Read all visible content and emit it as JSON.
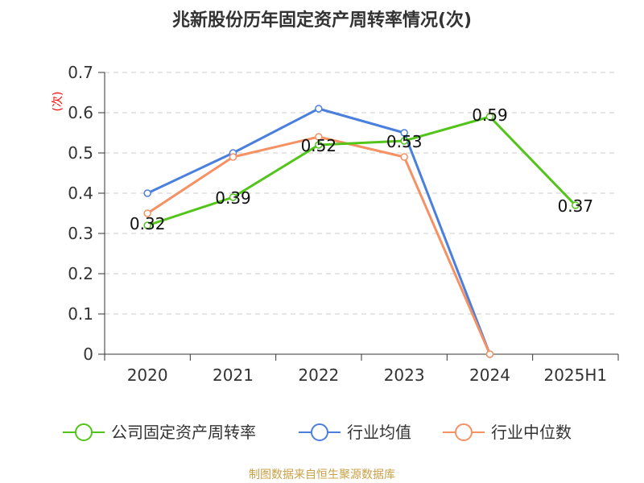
{
  "title": "兆新股份历年固定资产周转率情况(次)",
  "source": "制图数据来自恒生聚源数据库",
  "chart_data": {
    "type": "line",
    "categories": [
      "2020",
      "2021",
      "2022",
      "2023",
      "2024",
      "2025H1"
    ],
    "ylabel": "(次)",
    "ylim": [
      0,
      0.7
    ],
    "yticks": [
      "0",
      "0.1",
      "0.2",
      "0.3",
      "0.4",
      "0.5",
      "0.6",
      "0.7"
    ],
    "grid": true,
    "legend_position": "bottom",
    "series": [
      {
        "name": "公司固定资产周转率",
        "color": "#52c41a",
        "values": [
          0.32,
          0.39,
          0.52,
          0.53,
          0.59,
          0.37
        ],
        "labels": [
          "0.32",
          "0.39",
          "0.52",
          "0.53",
          "0.59",
          "0.37"
        ]
      },
      {
        "name": "行业均值",
        "color": "#4a7fde",
        "values": [
          0.4,
          0.5,
          0.61,
          0.55,
          0,
          null
        ],
        "labels": []
      },
      {
        "name": "行业中位数",
        "color": "#f59163",
        "values": [
          0.35,
          0.49,
          0.54,
          0.49,
          0,
          null
        ],
        "labels": []
      }
    ]
  }
}
